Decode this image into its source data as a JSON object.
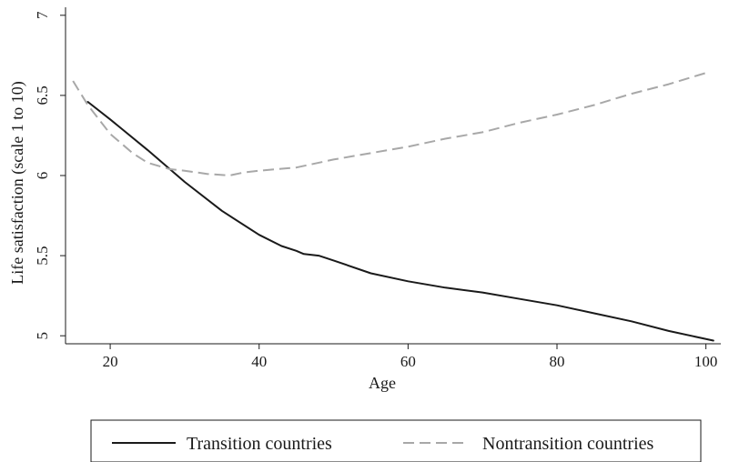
{
  "chart_data": {
    "type": "line",
    "xlabel": "Age",
    "ylabel": "Life satisfaction (scale 1 to 10)",
    "xlim": [
      14,
      102
    ],
    "ylim": [
      4.95,
      7.05
    ],
    "x_ticks": [
      20,
      40,
      60,
      80,
      100
    ],
    "x_tick_labels": [
      "20",
      "40",
      "60",
      "80",
      "100"
    ],
    "y_ticks": [
      5,
      5.5,
      6,
      6.5,
      7
    ],
    "y_tick_labels": [
      "5",
      "5.5",
      "6",
      "6.5",
      "7"
    ],
    "grid": false,
    "legend_position": "bottom",
    "series": [
      {
        "name": "Transition countries",
        "color": "#1a1a1a",
        "dash": "solid",
        "x": [
          17,
          20,
          25,
          30,
          35,
          40,
          43,
          45,
          46,
          48,
          50,
          55,
          60,
          65,
          70,
          75,
          80,
          85,
          90,
          95,
          101
        ],
        "y": [
          6.46,
          6.35,
          6.16,
          5.96,
          5.78,
          5.63,
          5.56,
          5.53,
          5.51,
          5.5,
          5.47,
          5.39,
          5.34,
          5.3,
          5.27,
          5.23,
          5.19,
          5.14,
          5.09,
          5.03,
          4.97
        ]
      },
      {
        "name": "Nontransition countries",
        "color": "#a8a8a8",
        "dash": "dashed",
        "x": [
          15,
          17,
          20,
          23,
          25,
          28,
          30,
          33,
          36,
          38,
          40,
          45,
          50,
          55,
          60,
          65,
          70,
          75,
          80,
          85,
          90,
          95,
          100
        ],
        "y": [
          6.59,
          6.44,
          6.26,
          6.14,
          6.08,
          6.04,
          6.03,
          6.01,
          6.0,
          6.02,
          6.03,
          6.05,
          6.1,
          6.14,
          6.18,
          6.23,
          6.27,
          6.33,
          6.38,
          6.44,
          6.51,
          6.57,
          6.64
        ]
      }
    ]
  }
}
